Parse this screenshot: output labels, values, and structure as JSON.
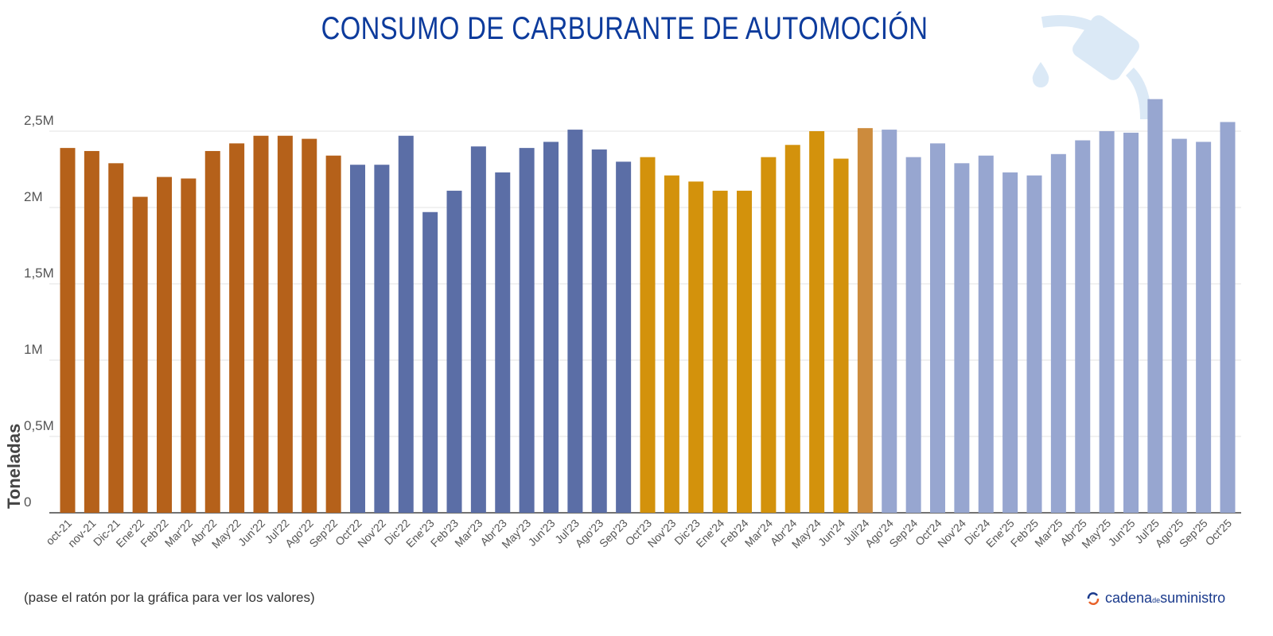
{
  "chart_data": {
    "type": "bar",
    "title": "CONSUMO DE CARBURANTE DE AUTOMOCIÓN",
    "xlabel": "",
    "ylabel": "Toneladas",
    "ylim": [
      0,
      2500000
    ],
    "yticks": [
      0,
      500000,
      1000000,
      1500000,
      2000000,
      2500000
    ],
    "ytick_labels": [
      "0",
      "0,5M",
      "1M",
      "1,5M",
      "2M",
      "2,5M"
    ],
    "grid": true,
    "categories": [
      "oct-21",
      "nov-21",
      "Dic-21",
      "Ene'22",
      "Feb'22",
      "Mar'22",
      "Abr'22",
      "May'22",
      "Jun'22",
      "Jul'22",
      "Ago'22",
      "Sep'22",
      "Oct'22",
      "Nov'22",
      "Dic'22",
      "Ene'23",
      "Feb'23",
      "Mar'23",
      "Abr'23",
      "May'23",
      "Jun'23",
      "Jul'23",
      "Ago'23",
      "Sep'23",
      "Oct'23",
      "Nov'23",
      "Dic'23",
      "Ene'24",
      "Feb'24",
      "Mar'24",
      "Abr'24",
      "May'24",
      "Jun'24",
      "Juli'24",
      "Ago'24",
      "Sep'24",
      "Oct'24",
      "Nov'24",
      "Dic'24",
      "Ene'25",
      "Feb'25",
      "Mar'25",
      "Abr'25",
      "May'25",
      "Jun'25",
      "Jul'25",
      "Ago'25",
      "Sep'25",
      "Oct'25"
    ],
    "values": [
      2390000,
      2370000,
      2290000,
      2070000,
      2200000,
      2190000,
      2370000,
      2420000,
      2470000,
      2470000,
      2450000,
      2340000,
      2280000,
      2280000,
      2470000,
      1970000,
      2110000,
      2400000,
      2230000,
      2390000,
      2430000,
      2510000,
      2380000,
      2300000,
      2330000,
      2210000,
      2170000,
      2110000,
      2110000,
      2330000,
      2410000,
      2500000,
      2320000,
      2520000,
      2510000,
      2330000,
      2420000,
      2290000,
      2340000,
      2230000,
      2210000,
      2350000,
      2440000,
      2500000,
      2490000,
      2710000,
      2450000,
      2430000,
      2560000
    ],
    "colors": [
      "#b5611a",
      "#b5611a",
      "#b5611a",
      "#b5611a",
      "#b5611a",
      "#b5611a",
      "#b5611a",
      "#b5611a",
      "#b5611a",
      "#b5611a",
      "#b5611a",
      "#b5611a",
      "#5b6ea6",
      "#5b6ea6",
      "#5b6ea6",
      "#5b6ea6",
      "#5b6ea6",
      "#5b6ea6",
      "#5b6ea6",
      "#5b6ea6",
      "#5b6ea6",
      "#5b6ea6",
      "#5b6ea6",
      "#5b6ea6",
      "#d3920c",
      "#d3920c",
      "#d3920c",
      "#d3920c",
      "#d3920c",
      "#d3920c",
      "#d3920c",
      "#d3920c",
      "#d3920c",
      "#cc8b3d",
      "#97a6d0",
      "#97a6d0",
      "#97a6d0",
      "#97a6d0",
      "#97a6d0",
      "#97a6d0",
      "#97a6d0",
      "#97a6d0",
      "#97a6d0",
      "#97a6d0",
      "#97a6d0",
      "#97a6d0",
      "#97a6d0",
      "#97a6d0",
      "#97a6d0"
    ]
  },
  "note": "(pase el ratón por la gráfica para ver los valores)",
  "logo": {
    "text_a": "cadena",
    "text_b": "de",
    "text_c": "suministro"
  },
  "decor_icon": "fuel-nozzle-icon"
}
